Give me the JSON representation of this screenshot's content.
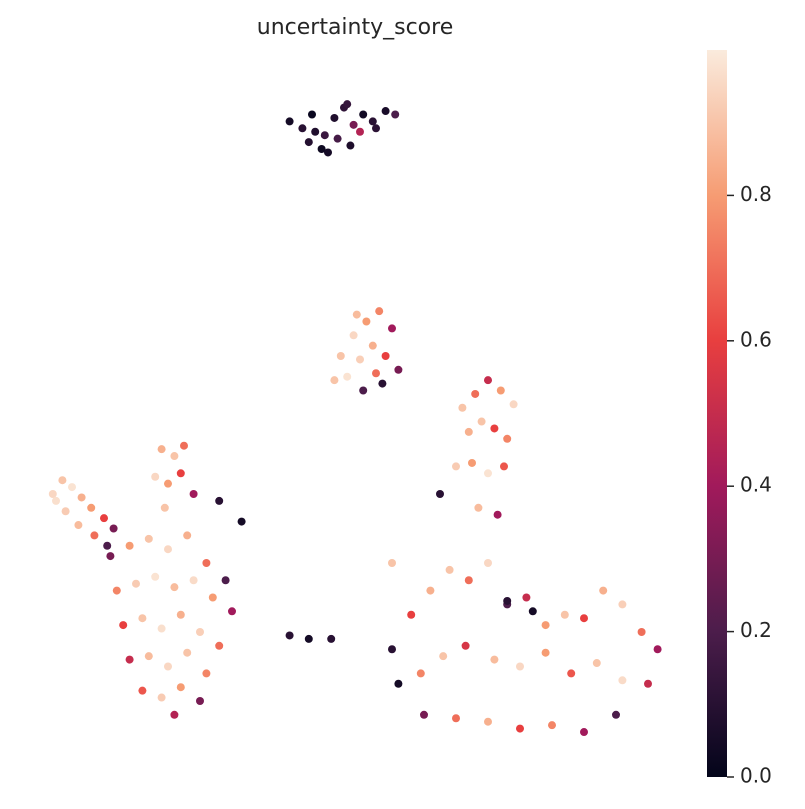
{
  "chart_data": {
    "type": "scatter",
    "title": "uncertainty_score",
    "xlim": [
      0,
      20
    ],
    "ylim": [
      0,
      20
    ],
    "colormap": [
      "#03051a",
      "#4c1d4b",
      "#a11a5b",
      "#e83f3f",
      "#f69c73",
      "#faebdd"
    ],
    "clim": [
      0,
      1
    ],
    "colorbar_ticks": [
      {
        "value": 0,
        "label": "0.0"
      },
      {
        "value": 0.2,
        "label": "0.2"
      },
      {
        "value": 0.4,
        "label": "0.4"
      },
      {
        "value": 0.6,
        "label": "0.6"
      },
      {
        "value": 0.8,
        "label": "0.8"
      }
    ],
    "x": [
      7.8,
      8.2,
      8.5,
      8.9,
      9.2,
      9.5,
      9.8,
      10.1,
      10.4,
      10.8,
      11.1,
      8.4,
      8.8,
      9.3,
      9.7,
      10.0,
      10.5,
      9.0,
      9.6,
      8.6,
      9.4,
      9.8,
      10.2,
      10.6,
      11.0,
      9.6,
      10.0,
      10.4,
      10.8,
      9.2,
      10.1,
      10.7,
      11.2,
      9.9,
      10.5,
      0.4,
      0.7,
      1.0,
      1.3,
      1.6,
      2.0,
      2.3,
      0.8,
      1.2,
      1.7,
      2.1,
      0.5,
      3.8,
      4.2,
      4.5,
      3.6,
      4.0,
      4.4,
      4.8,
      3.9,
      5.6,
      6.3,
      2.2,
      2.8,
      3.4,
      4.0,
      4.6,
      5.2,
      5.8,
      2.4,
      3.0,
      3.6,
      4.2,
      4.8,
      5.4,
      6.0,
      2.6,
      3.2,
      3.8,
      4.4,
      5.0,
      5.6,
      2.8,
      3.4,
      4.0,
      4.6,
      5.2,
      3.2,
      3.8,
      4.4,
      5.0,
      4.2,
      7.8,
      8.4,
      9.1,
      11.0,
      13.2,
      13.6,
      14.0,
      14.4,
      14.8,
      13.4,
      13.8,
      14.2,
      14.6,
      13.0,
      13.5,
      14.0,
      14.5,
      13.7,
      14.3,
      12.5,
      11.0,
      11.6,
      12.2,
      12.8,
      13.4,
      14.0,
      14.6,
      15.2,
      15.8,
      16.4,
      17.0,
      17.6,
      18.2,
      18.8,
      19.3,
      11.2,
      11.9,
      12.6,
      13.3,
      14.2,
      15.0,
      15.8,
      16.6,
      17.4,
      18.2,
      19.0,
      12.0,
      13.0,
      14.0,
      15.0,
      16.0,
      17.0,
      18.0,
      14.6,
      15.4
    ],
    "y": [
      18.8,
      18.6,
      19.0,
      18.4,
      18.9,
      19.2,
      18.7,
      19.0,
      18.8,
      19.1,
      19.0,
      18.2,
      18.0,
      18.3,
      18.1,
      18.5,
      18.6,
      17.9,
      19.3,
      18.5,
      12.0,
      12.6,
      13.0,
      13.3,
      12.8,
      11.4,
      11.9,
      12.3,
      12.0,
      11.3,
      11.0,
      11.2,
      11.6,
      13.2,
      11.5,
      8.0,
      8.4,
      8.2,
      7.9,
      7.6,
      7.3,
      7.0,
      7.5,
      7.1,
      6.8,
      6.5,
      7.8,
      9.3,
      9.1,
      9.4,
      8.5,
      8.3,
      8.6,
      8.0,
      7.6,
      7.8,
      7.2,
      6.2,
      6.5,
      6.7,
      6.4,
      6.8,
      6.0,
      5.5,
      5.2,
      5.4,
      5.6,
      5.3,
      5.5,
      5.0,
      4.6,
      4.2,
      4.4,
      4.1,
      4.5,
      4.0,
      3.6,
      3.2,
      3.3,
      3.0,
      3.4,
      2.8,
      2.3,
      2.1,
      2.4,
      2.0,
      1.6,
      3.9,
      3.8,
      3.8,
      6.0,
      10.5,
      10.9,
      11.3,
      11.0,
      10.6,
      9.8,
      10.1,
      9.9,
      9.6,
      8.8,
      8.9,
      8.6,
      8.8,
      7.6,
      7.4,
      8.0,
      3.5,
      4.5,
      5.2,
      5.8,
      5.5,
      6.0,
      4.8,
      5.0,
      4.2,
      4.5,
      4.4,
      5.2,
      4.8,
      4.0,
      3.5,
      2.5,
      2.8,
      3.3,
      3.6,
      3.2,
      3.0,
      3.4,
      2.8,
      3.1,
      2.6,
      2.5,
      1.6,
      1.5,
      1.4,
      1.2,
      1.3,
      1.1,
      1.6,
      4.9,
      4.6
    ],
    "values": [
      0.05,
      0.1,
      0.02,
      0.15,
      0.08,
      0.12,
      0.3,
      0.04,
      0.1,
      0.06,
      0.2,
      0.09,
      0.03,
      0.18,
      0.07,
      0.45,
      0.11,
      0.05,
      0.14,
      0.08,
      0.9,
      0.95,
      0.8,
      0.75,
      0.4,
      0.98,
      0.93,
      0.85,
      0.6,
      0.9,
      0.2,
      0.1,
      0.3,
      0.88,
      0.7,
      0.95,
      0.9,
      0.98,
      0.85,
      0.8,
      0.6,
      0.3,
      0.92,
      0.88,
      0.7,
      0.2,
      0.97,
      0.85,
      0.9,
      0.7,
      0.95,
      0.8,
      0.6,
      0.4,
      0.9,
      0.1,
      0.05,
      0.3,
      0.8,
      0.9,
      0.95,
      0.85,
      0.7,
      0.2,
      0.75,
      0.92,
      0.98,
      0.88,
      0.96,
      0.8,
      0.4,
      0.6,
      0.9,
      0.97,
      0.85,
      0.93,
      0.7,
      0.5,
      0.88,
      0.95,
      0.9,
      0.75,
      0.65,
      0.92,
      0.8,
      0.3,
      0.45,
      0.1,
      0.05,
      0.1,
      0.9,
      0.9,
      0.7,
      0.5,
      0.8,
      0.95,
      0.85,
      0.9,
      0.6,
      0.75,
      0.92,
      0.8,
      0.98,
      0.65,
      0.88,
      0.4,
      0.1,
      0.1,
      0.6,
      0.85,
      0.9,
      0.7,
      0.95,
      0.2,
      0.5,
      0.8,
      0.9,
      0.6,
      0.85,
      0.93,
      0.7,
      0.4,
      0.05,
      0.75,
      0.9,
      0.55,
      0.88,
      0.95,
      0.8,
      0.65,
      0.9,
      0.96,
      0.5,
      0.3,
      0.7,
      0.85,
      0.6,
      0.75,
      0.4,
      0.2,
      0.1,
      0.05
    ]
  }
}
